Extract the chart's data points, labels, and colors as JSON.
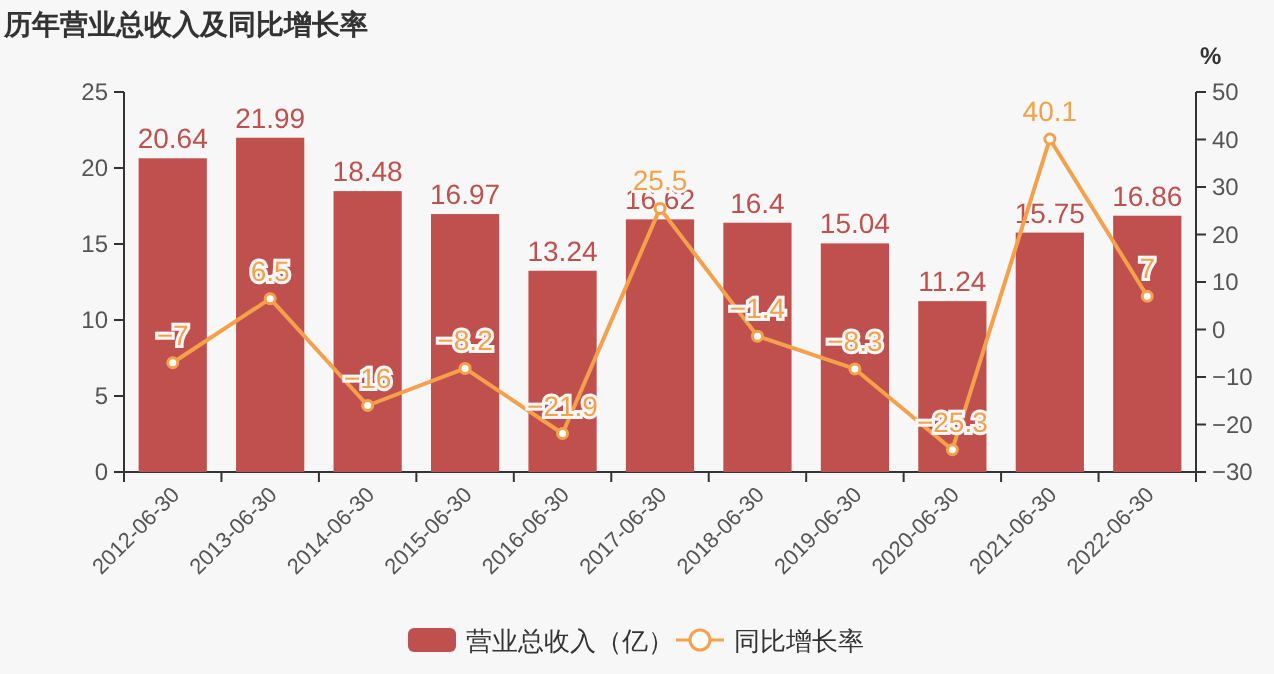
{
  "chart_data": {
    "type": "bar",
    "title": "历年营业总收入及同比增长率",
    "y2label": "%",
    "categories": [
      "2012-06-30",
      "2013-06-30",
      "2014-06-30",
      "2015-06-30",
      "2016-06-30",
      "2017-06-30",
      "2018-06-30",
      "2019-06-30",
      "2020-06-30",
      "2021-06-30",
      "2022-06-30"
    ],
    "series": [
      {
        "name": "营业总收入（亿）",
        "color": "#c0504d",
        "values": [
          20.64,
          21.99,
          18.48,
          16.97,
          13.24,
          16.62,
          16.4,
          15.04,
          11.24,
          15.75,
          16.86
        ]
      },
      {
        "name": "同比增长率",
        "type": "line",
        "axis": "y2",
        "color": "#f5a04a",
        "marker": "circle",
        "values": [
          -7,
          6.5,
          -16,
          -8.2,
          -21.9,
          25.5,
          -1.4,
          -8.3,
          -25.3,
          40.1,
          7
        ]
      }
    ],
    "ylim": [
      0,
      25
    ],
    "yticks": [
      0,
      5,
      10,
      15,
      20,
      25
    ],
    "y2lim": [
      -30,
      50
    ],
    "y2ticks": [
      -30,
      -20,
      -10,
      0,
      10,
      20,
      30,
      40,
      50
    ],
    "data_labels": true,
    "grid": false,
    "legend": "bottom"
  }
}
